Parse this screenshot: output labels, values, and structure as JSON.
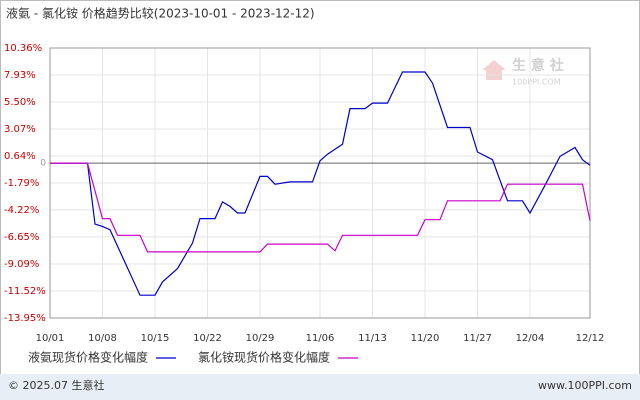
{
  "chart_data": {
    "type": "line",
    "title": "液氨 - 氯化铵 价格趋势比较(2023-10-01 - 2023-12-12)",
    "xlim": [
      "10/01",
      "12/12"
    ],
    "xticks": [
      "10/01",
      "10/08",
      "10/15",
      "10/22",
      "10/29",
      "11/06",
      "11/13",
      "11/20",
      "11/27",
      "12/04",
      "12/12"
    ],
    "ylim": [
      -13.95,
      10.36
    ],
    "yticks": [
      {
        "value": 10.36,
        "label": "10.36%"
      },
      {
        "value": 7.93,
        "label": "7.93%"
      },
      {
        "value": 5.5,
        "label": "5.50%"
      },
      {
        "value": 3.07,
        "label": "3.07%"
      },
      {
        "value": 0.64,
        "label": "0.64%"
      },
      {
        "value": -1.79,
        "label": "-1.79%"
      },
      {
        "value": -4.22,
        "label": "-4.22%"
      },
      {
        "value": -6.65,
        "label": "-6.65%"
      },
      {
        "value": -9.09,
        "label": "-9.09%"
      },
      {
        "value": -11.52,
        "label": "-11.52%"
      },
      {
        "value": -13.95,
        "label": "-13.95%"
      }
    ],
    "zero_line": {
      "value": 0,
      "label": "0"
    },
    "grid": true,
    "series": [
      {
        "name": "液氨现货价格变化幅度",
        "color": "#0000cc",
        "x": [
          "10/01",
          "10/06",
          "10/07",
          "10/08",
          "10/09",
          "10/13",
          "10/15",
          "10/16",
          "10/18",
          "10/20",
          "10/21",
          "10/23",
          "10/24",
          "10/25",
          "10/26",
          "10/27",
          "10/29",
          "10/30",
          "10/31",
          "11/02",
          "11/05",
          "11/06",
          "11/07",
          "11/09",
          "11/10",
          "11/12",
          "11/13",
          "11/15",
          "11/16",
          "11/17",
          "11/20",
          "11/21",
          "11/23",
          "11/26",
          "11/27",
          "11/29",
          "12/01",
          "12/03",
          "12/04",
          "12/06",
          "12/08",
          "12/10",
          "12/11",
          "12/12"
        ],
        "values": [
          0,
          0,
          -5.5,
          -5.7,
          -6.0,
          -11.9,
          -11.9,
          -10.7,
          -9.5,
          -7.2,
          -5.0,
          -5.0,
          -3.5,
          -3.9,
          -4.5,
          -4.5,
          -1.2,
          -1.2,
          -1.9,
          -1.7,
          -1.7,
          0.2,
          0.8,
          1.7,
          4.9,
          4.9,
          5.4,
          5.4,
          6.8,
          8.2,
          8.2,
          7.2,
          3.2,
          3.2,
          1.0,
          0.3,
          -3.4,
          -3.4,
          -4.5,
          -2.0,
          0.6,
          1.4,
          0.3,
          -0.2
        ]
      },
      {
        "name": "氯化铵现货价格变化幅度",
        "color": "#cc00cc",
        "x": [
          "10/01",
          "10/06",
          "10/08",
          "10/09",
          "10/10",
          "10/13",
          "10/14",
          "10/29",
          "10/30",
          "11/07",
          "11/08",
          "11/09",
          "11/19",
          "11/20",
          "11/22",
          "11/23",
          "11/30",
          "12/01",
          "12/11",
          "12/12"
        ],
        "values": [
          0,
          0,
          -5.0,
          -5.0,
          -6.5,
          -6.5,
          -8.0,
          -8.0,
          -7.3,
          -7.3,
          -7.9,
          -6.5,
          -6.5,
          -5.1,
          -5.1,
          -3.4,
          -3.4,
          -1.9,
          -1.9,
          -5.2
        ]
      }
    ]
  },
  "footer": {
    "copyright": "© 2025.07 生意社",
    "site": "www.100PPI.com"
  },
  "watermark": {
    "name": "生 意 社",
    "site": "100PPI.COM"
  }
}
